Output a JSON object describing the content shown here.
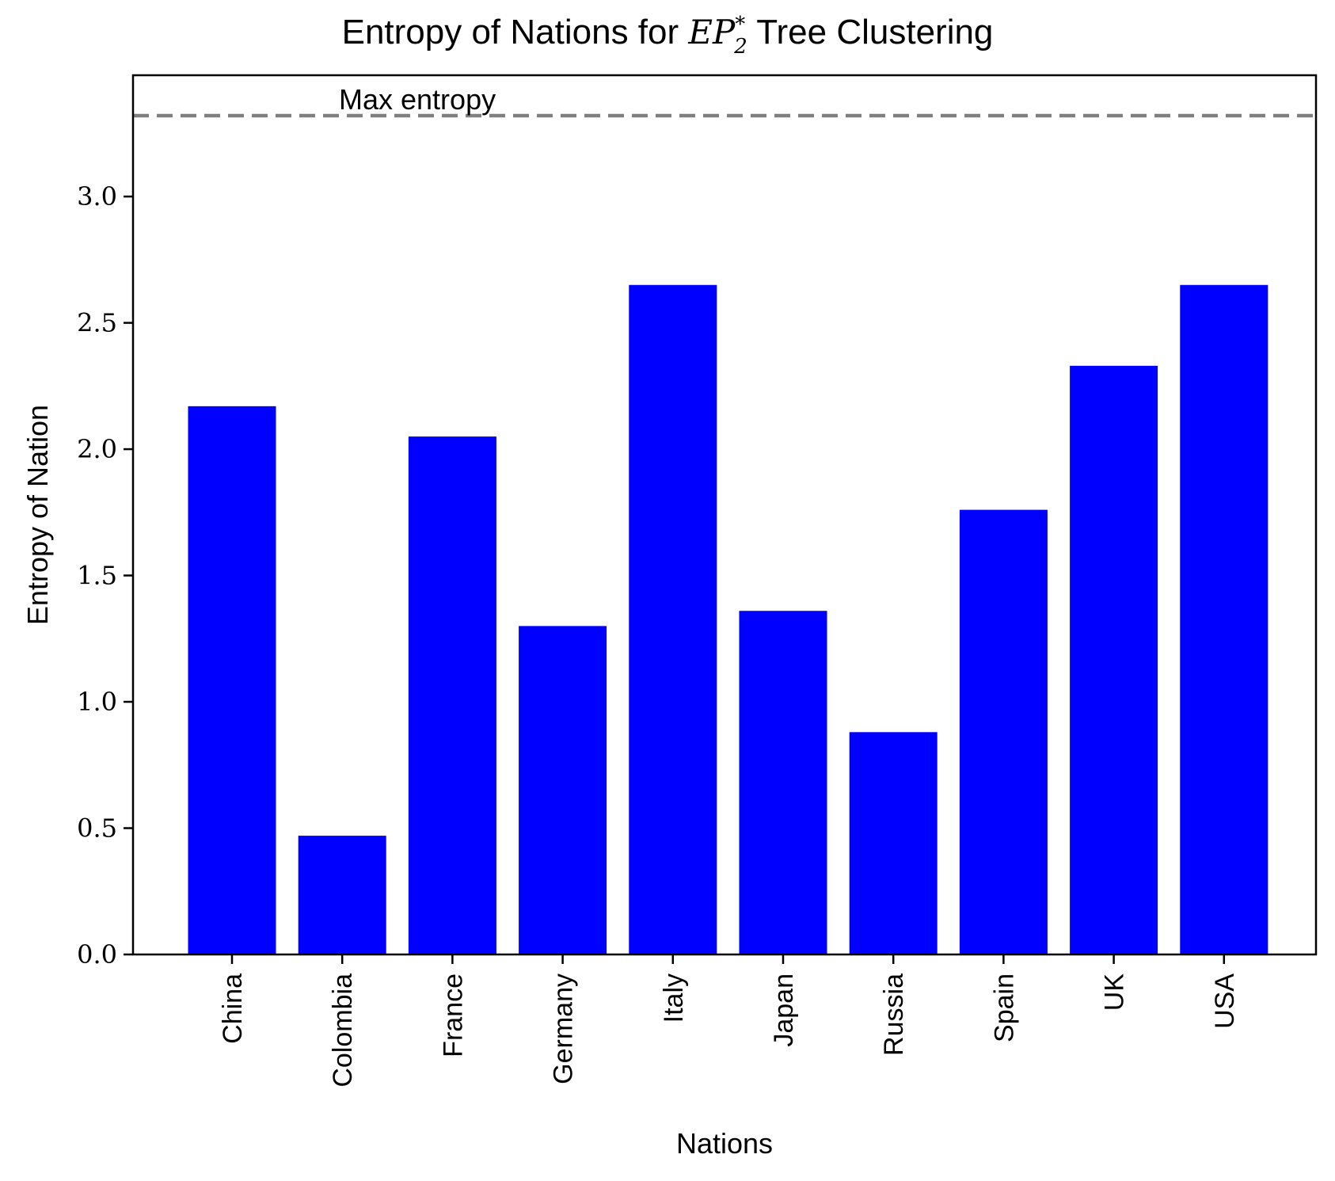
{
  "chart_data": {
    "type": "bar",
    "title": {
      "prefix": "Entropy of Nations for ",
      "math_main": "EP",
      "math_sub": "2",
      "math_sup": "*",
      "suffix": " Tree Clustering"
    },
    "xlabel": "Nations",
    "ylabel": "Entropy of Nation",
    "categories": [
      "China",
      "Colombia",
      "France",
      "Germany",
      "Italy",
      "Japan",
      "Russia",
      "Spain",
      "UK",
      "USA"
    ],
    "values": [
      2.17,
      0.47,
      2.05,
      1.3,
      2.65,
      1.36,
      0.88,
      1.76,
      2.33,
      2.65
    ],
    "yticks": [
      0.0,
      0.5,
      1.0,
      1.5,
      2.0,
      2.5,
      3.0
    ],
    "ytick_labels": [
      "0.0",
      "0.5",
      "1.0",
      "1.5",
      "2.0",
      "2.5",
      "3.0"
    ],
    "ylim": [
      0,
      3.48
    ],
    "bar_color": "#0000ff",
    "reference_line": {
      "value": 3.32,
      "label": "Max entropy",
      "color": "#808080",
      "style": "dashed"
    },
    "grid": false,
    "legend": "none"
  }
}
